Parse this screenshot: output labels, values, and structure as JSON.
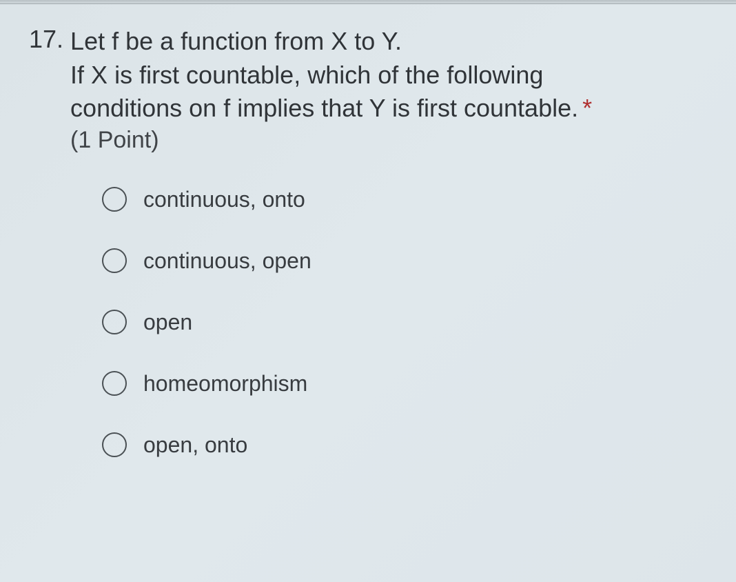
{
  "question": {
    "number": "17.",
    "line1": "Let f be a function from X to Y.",
    "line2": "If X is first countable, which of the following",
    "line3": "conditions on f implies that Y is first countable.",
    "points": "(1 Point)",
    "required_marker": "*"
  },
  "options": [
    {
      "label": "continuous, onto"
    },
    {
      "label": "continuous, open"
    },
    {
      "label": "open"
    },
    {
      "label": "homeomorphism"
    },
    {
      "label": "open, onto"
    }
  ],
  "colors": {
    "background_start": "#dce4e8",
    "background_end": "#dde5ea",
    "text_primary": "#303438",
    "text_secondary": "#404448",
    "radio_border": "#4a5054",
    "required": "#b03030"
  },
  "typography": {
    "question_fontsize": 36,
    "points_fontsize": 34,
    "option_fontsize": 32,
    "font_family": "Segoe UI"
  }
}
